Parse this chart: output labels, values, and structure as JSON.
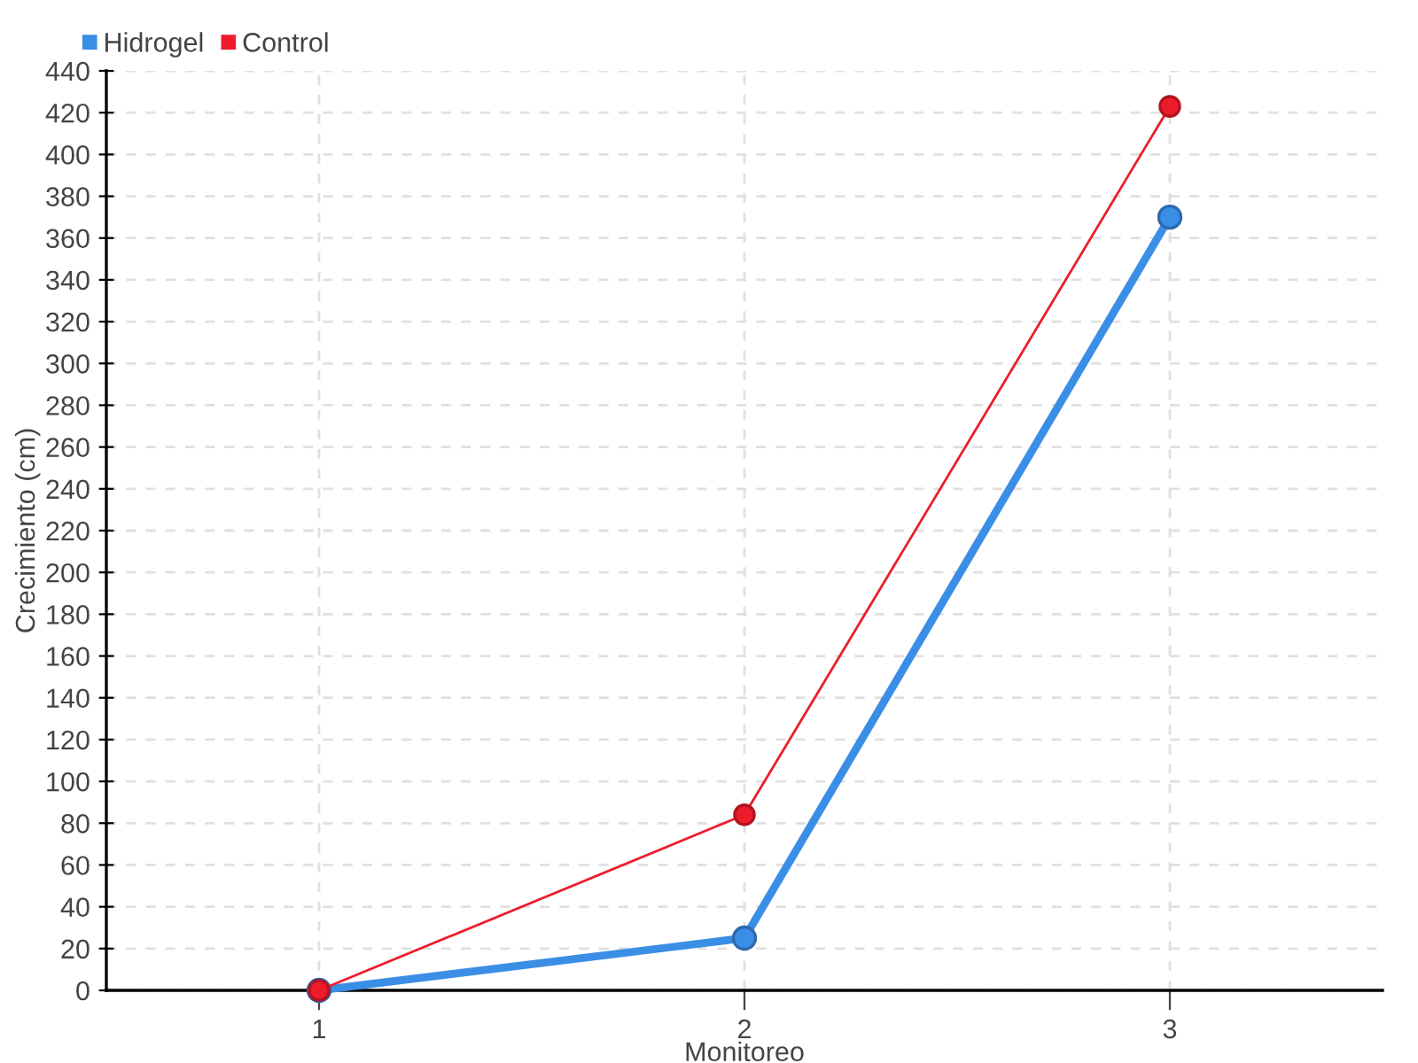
{
  "chart_data": {
    "type": "line",
    "xlabel": "Monitoreo",
    "ylabel": "Crecimiento (cm)",
    "categories": [
      "1",
      "2",
      "3"
    ],
    "series": [
      {
        "name": "Hidrogel",
        "color": "#3b8ee6",
        "values": [
          0,
          25,
          370
        ]
      },
      {
        "name": "Control",
        "color": "#ee1c2b",
        "values": [
          0,
          84,
          423
        ]
      }
    ],
    "ylim": [
      0,
      440
    ],
    "yticks": [
      0,
      20,
      40,
      60,
      80,
      100,
      120,
      140,
      160,
      180,
      200,
      220,
      240,
      260,
      280,
      300,
      320,
      340,
      360,
      380,
      400,
      420,
      440
    ],
    "grid": true,
    "legend": "top left",
    "marker": "circle",
    "line_style": "solid"
  }
}
